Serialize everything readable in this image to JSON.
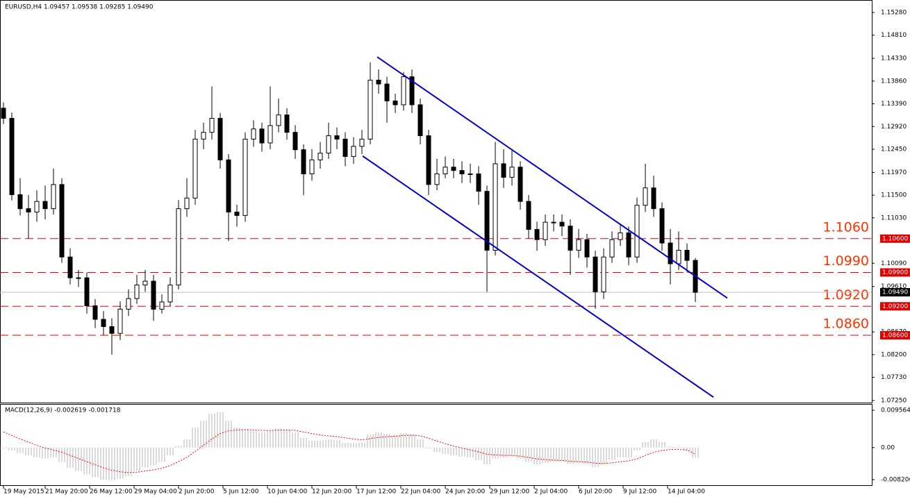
{
  "chart_data": [
    {
      "type": "candlestick",
      "title": "EURUSD,H4  1.09457 1.09538 1.09285 1.09490",
      "open": [
        1.133,
        1.1309,
        1.1151,
        1.1122,
        1.1115,
        1.1137,
        1.1122,
        1.1172,
        1.1022,
        1.0979,
        1.0979,
        1.0921,
        1.0893,
        1.0878,
        1.0864,
        1.0914,
        1.0936,
        1.0964,
        1.0972,
        1.0914,
        1.0929,
        1.0964,
        1.1122,
        1.1144,
        1.1266,
        1.128,
        1.1309,
        1.1223,
        1.1115,
        1.1108,
        1.1266,
        1.1287,
        1.1258,
        1.1294,
        1.1316,
        1.128,
        1.1244,
        1.1194,
        1.1223,
        1.1237,
        1.1273,
        1.1266,
        1.123,
        1.1251,
        1.1266,
        1.1388,
        1.138,
        1.1345,
        1.1337,
        1.1395,
        1.1337,
        1.1273,
        1.1172,
        1.1194,
        1.1208,
        1.1201,
        1.1194,
        1.1194,
        1.1158,
        1.1036,
        1.1215,
        1.1187,
        1.1208,
        1.1137,
        1.1079,
        1.1058,
        1.1094,
        1.1094,
        1.1086,
        1.1036,
        1.1058,
        1.1022,
        1.095,
        1.1022,
        1.1058,
        1.1072,
        1.1022,
        1.1129,
        1.1165,
        1.1122,
        1.1051,
        1.1008,
        1.1036,
        1.1015
      ],
      "high": [
        1.1342,
        1.1321,
        1.1185,
        1.115,
        1.116,
        1.117,
        1.1205,
        1.1185,
        1.104,
        1.0995,
        1.099,
        1.0935,
        1.091,
        1.0895,
        1.093,
        1.0955,
        1.0985,
        1.0995,
        1.0985,
        1.0945,
        1.098,
        1.114,
        1.1185,
        1.1285,
        1.13,
        1.1375,
        1.132,
        1.1235,
        1.113,
        1.128,
        1.1305,
        1.13,
        1.1375,
        1.135,
        1.133,
        1.1295,
        1.1255,
        1.1245,
        1.126,
        1.13,
        1.129,
        1.128,
        1.127,
        1.1285,
        1.1425,
        1.141,
        1.1395,
        1.136,
        1.1405,
        1.141,
        1.135,
        1.1285,
        1.1225,
        1.123,
        1.1225,
        1.122,
        1.1215,
        1.121,
        1.117,
        1.126,
        1.1245,
        1.1245,
        1.122,
        1.115,
        1.1095,
        1.111,
        1.111,
        1.111,
        1.11,
        1.108,
        1.107,
        1.1035,
        1.104,
        1.1075,
        1.109,
        1.1085,
        1.1145,
        1.1215,
        1.119,
        1.1135,
        1.108,
        1.1075,
        1.105,
        1.102
      ],
      "low": [
        1.1297,
        1.1139,
        1.1108,
        1.106,
        1.1095,
        1.11,
        1.111,
        1.101,
        1.0965,
        1.096,
        1.0905,
        1.0875,
        1.086,
        1.082,
        1.085,
        1.09,
        1.0925,
        1.095,
        1.089,
        1.0905,
        1.092,
        1.0955,
        1.1105,
        1.113,
        1.1245,
        1.1265,
        1.1205,
        1.1055,
        1.1085,
        1.1095,
        1.125,
        1.124,
        1.1245,
        1.128,
        1.1265,
        1.1225,
        1.115,
        1.118,
        1.1205,
        1.1225,
        1.1245,
        1.121,
        1.1215,
        1.1235,
        1.1255,
        1.136,
        1.13,
        1.132,
        1.1325,
        1.132,
        1.1255,
        1.115,
        1.116,
        1.1185,
        1.1185,
        1.1175,
        1.1175,
        1.113,
        1.095,
        1.1025,
        1.1165,
        1.117,
        1.112,
        1.106,
        1.1035,
        1.1045,
        1.1075,
        1.1065,
        1.0985,
        1.102,
        1.1,
        1.0915,
        1.0935,
        1.101,
        1.1045,
        1.1005,
        1.101,
        1.1115,
        1.1105,
        1.1035,
        1.0965,
        1.0995,
        1.099,
        1.0929
      ],
      "close": [
        1.1309,
        1.1151,
        1.1122,
        1.1115,
        1.1137,
        1.1122,
        1.1172,
        1.1022,
        1.0979,
        1.0979,
        1.0921,
        1.0893,
        1.0878,
        1.0864,
        1.0914,
        1.0936,
        1.0964,
        1.0972,
        1.0914,
        1.0929,
        1.0964,
        1.1122,
        1.1144,
        1.1266,
        1.128,
        1.1309,
        1.1223,
        1.1115,
        1.1108,
        1.1266,
        1.1287,
        1.1258,
        1.1294,
        1.1316,
        1.128,
        1.1244,
        1.1194,
        1.1223,
        1.1237,
        1.1273,
        1.1266,
        1.123,
        1.1251,
        1.1266,
        1.1388,
        1.138,
        1.1345,
        1.1337,
        1.1395,
        1.1337,
        1.1273,
        1.1172,
        1.1194,
        1.1208,
        1.1201,
        1.1194,
        1.1194,
        1.1158,
        1.1036,
        1.1215,
        1.1187,
        1.1208,
        1.1137,
        1.1079,
        1.1058,
        1.1094,
        1.1094,
        1.1086,
        1.1036,
        1.1058,
        1.1022,
        1.095,
        1.1022,
        1.1058,
        1.1072,
        1.1022,
        1.1129,
        1.1165,
        1.1122,
        1.1051,
        1.1008,
        1.1036,
        1.1015,
        1.0949
      ],
      "ylim": [
        1.07207,
        1.15524
      ],
      "yticks": [
        {
          "value": 1.1528,
          "label": "1.15280"
        },
        {
          "value": 1.1481,
          "label": "1.14810"
        },
        {
          "value": 1.1433,
          "label": "1.14330"
        },
        {
          "value": 1.1386,
          "label": "1.13860"
        },
        {
          "value": 1.1339,
          "label": "1.13390"
        },
        {
          "value": 1.1292,
          "label": "1.12920"
        },
        {
          "value": 1.1245,
          "label": "1.12450"
        },
        {
          "value": 1.1197,
          "label": "1.11970"
        },
        {
          "value": 1.115,
          "label": "1.11500"
        },
        {
          "value": 1.1103,
          "label": "1.11030"
        },
        {
          "value": 1.1009,
          "label": "1.10090"
        },
        {
          "value": 1.0961,
          "label": "1.09610"
        },
        {
          "value": 1.0867,
          "label": "1.08670"
        },
        {
          "value": 1.082,
          "label": "1.08200"
        },
        {
          "value": 1.0773,
          "label": "1.07730"
        },
        {
          "value": 1.0725,
          "label": "1.07250"
        }
      ],
      "xlim": [
        -1.25,
        312.5
      ],
      "xticks": [
        {
          "value": 0,
          "label": "19 May 2015"
        },
        {
          "value": 15,
          "label": "21 May 20:00"
        },
        {
          "value": 31,
          "label": "26 May 12:00"
        },
        {
          "value": 47,
          "label": "29 May 04:00"
        },
        {
          "value": 63,
          "label": "2 Jun 20:00"
        },
        {
          "value": 79,
          "label": "5 Jun 12:00"
        },
        {
          "value": 95,
          "label": "10 Jun 04:00"
        },
        {
          "value": 111,
          "label": "12 Jun 20:00"
        },
        {
          "value": 127,
          "label": "17 Jun 12:00"
        },
        {
          "value": 143,
          "label": "22 Jun 04:00"
        },
        {
          "value": 159,
          "label": "24 Jun 20:00"
        },
        {
          "value": 175,
          "label": "29 Jun 12:00"
        },
        {
          "value": 191,
          "label": "2 Jul 04:00"
        },
        {
          "value": 207,
          "label": "6 Jul 20:00"
        },
        {
          "value": 223,
          "label": "9 Jul 12:00"
        },
        {
          "value": 239,
          "label": "14 Jul 04:00"
        }
      ],
      "levels": [
        {
          "value": 1.106,
          "label": "1.1060",
          "axis_label": "1.10600"
        },
        {
          "value": 1.099,
          "label": "1.0990",
          "axis_label": "1.09900"
        },
        {
          "value": 1.092,
          "label": "1.0920",
          "axis_label": "1.09200"
        },
        {
          "value": 1.086,
          "label": "1.0860",
          "axis_label": "1.08600"
        }
      ],
      "current_price": {
        "value": 1.0949,
        "label": "1.09490"
      },
      "trendlines": [
        {
          "x": [
            134.5,
            260.5
          ],
          "y": [
            1.1436,
            1.0937
          ]
        },
        {
          "x": [
            129.25,
            255.5
          ],
          "y": [
            1.1231,
            1.0732
          ]
        }
      ],
      "up_color": "#ffffff",
      "down_color": "#000000",
      "level_color": "#e00000",
      "level_text_color": "#ff3300",
      "trendline_color": "#0000cc"
    },
    {
      "type": "macd",
      "title": "MACD(12,26,9) -0.002619 -0.001718",
      "histogram": [
        -0.0002,
        -0.0007,
        -0.0014,
        -0.002,
        -0.0025,
        -0.0028,
        -0.0025,
        -0.0037,
        -0.0052,
        -0.006,
        -0.0069,
        -0.0076,
        -0.0082,
        -0.0084,
        -0.008,
        -0.0073,
        -0.006,
        -0.005,
        -0.0046,
        -0.0037,
        -0.002,
        0.0004,
        0.0021,
        0.0052,
        0.0069,
        0.0087,
        0.0091,
        0.0069,
        0.0052,
        0.0048,
        0.0043,
        0.0039,
        0.0043,
        0.0048,
        0.0046,
        0.0039,
        0.0025,
        0.0018,
        0.0018,
        0.0021,
        0.002,
        0.0012,
        0.0011,
        0.0012,
        0.0034,
        0.0039,
        0.0036,
        0.0032,
        0.0037,
        0.0034,
        0.0021,
        -0.0002,
        -0.0011,
        -0.0016,
        -0.002,
        -0.0023,
        -0.0025,
        -0.0032,
        -0.0043,
        -0.0028,
        -0.0025,
        -0.0021,
        -0.0028,
        -0.0037,
        -0.0043,
        -0.0039,
        -0.0036,
        -0.0036,
        -0.0041,
        -0.0039,
        -0.0043,
        -0.005,
        -0.0043,
        -0.0032,
        -0.0025,
        -0.0025,
        -0.0007,
        0.0014,
        0.0021,
        0.0014,
        0.0002,
        -0.0002,
        -0.0007,
        -0.002619
      ],
      "signal": [
        0.004,
        0.0031,
        0.0022,
        0.0014,
        0.0006,
        -0.0001,
        -0.0006,
        -0.0012,
        -0.002,
        -0.0028,
        -0.0036,
        -0.0044,
        -0.0052,
        -0.0058,
        -0.0062,
        -0.0064,
        -0.0063,
        -0.006,
        -0.0057,
        -0.0053,
        -0.0046,
        -0.0036,
        -0.0025,
        -0.001,
        0.0006,
        0.0022,
        0.0036,
        0.0043,
        0.0045,
        0.0046,
        0.0045,
        0.0044,
        0.0044,
        0.0045,
        0.0045,
        0.0044,
        0.004,
        0.0036,
        0.0032,
        0.003,
        0.0028,
        0.0025,
        0.0022,
        0.002,
        0.0023,
        0.0026,
        0.0028,
        0.0029,
        0.0031,
        0.0032,
        0.003,
        0.0024,
        0.0017,
        0.001,
        0.0004,
        -0.0001,
        -0.0006,
        -0.0011,
        -0.0017,
        -0.0019,
        -0.002,
        -0.002,
        -0.0022,
        -0.0025,
        -0.0029,
        -0.0031,
        -0.0032,
        -0.0033,
        -0.0035,
        -0.0036,
        -0.0037,
        -0.004,
        -0.0041,
        -0.0039,
        -0.0036,
        -0.0034,
        -0.0029,
        -0.002,
        -0.0012,
        -0.0007,
        -0.0005,
        -0.0005,
        -0.0006,
        -0.001718
      ],
      "ylim": [
        -0.00963,
        0.01099
      ],
      "yticks": [
        0.009564,
        {
          "value": 0,
          "label": "0.00"
        },
        -0.008206
      ],
      "histogram_color": "#b4b4b4",
      "signal_color": "#ff0000"
    }
  ]
}
